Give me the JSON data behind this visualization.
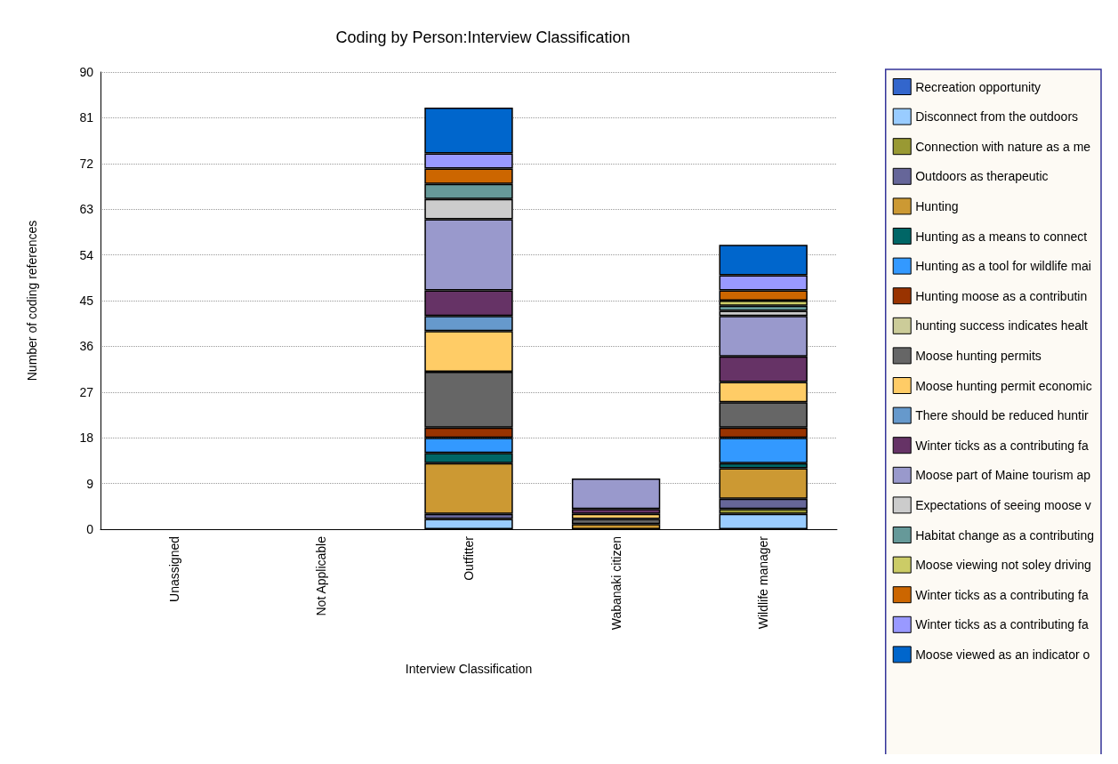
{
  "chart_data": {
    "type": "bar",
    "stacked": true,
    "title": "Coding by Person:Interview Classification",
    "xlabel": "Interview Classification",
    "ylabel": "Number of coding references",
    "categories": [
      "Unassigned",
      "Not Applicable",
      "Outfitter",
      "Wabanaki citizen",
      "Wildlife manager"
    ],
    "ylim": [
      0,
      90
    ],
    "yticks": [
      0,
      9,
      18,
      27,
      36,
      45,
      54,
      63,
      72,
      81,
      90
    ],
    "grid": "y",
    "legend": "right",
    "series": [
      {
        "name": "Recreation opportunity",
        "color": "#3366cc",
        "values": [
          null,
          null,
          null,
          null,
          null
        ]
      },
      {
        "name": "Disconnect from the outdoors",
        "color": "#99ccff",
        "values": [
          null,
          null,
          2,
          null,
          3
        ]
      },
      {
        "name": "Connection with nature as a me",
        "color": "#999933",
        "values": [
          null,
          null,
          null,
          null,
          1
        ]
      },
      {
        "name": "Outdoors as therapeutic",
        "color": "#666699",
        "values": [
          null,
          null,
          1,
          null,
          2
        ]
      },
      {
        "name": "Hunting",
        "color": "#cc9933",
        "values": [
          null,
          null,
          10,
          1,
          6
        ]
      },
      {
        "name": "Hunting as a means to connect",
        "color": "#006666",
        "values": [
          null,
          null,
          2,
          null,
          1
        ]
      },
      {
        "name": "Hunting as a tool for wildlife mai",
        "color": "#3399ff",
        "values": [
          null,
          null,
          3,
          null,
          5
        ]
      },
      {
        "name": "Hunting moose as a contributin",
        "color": "#993300",
        "values": [
          null,
          null,
          2,
          null,
          2
        ]
      },
      {
        "name": "hunting success indicates healt",
        "color": "#cccc99",
        "values": [
          null,
          null,
          null,
          null,
          null
        ]
      },
      {
        "name": "Moose hunting permits",
        "color": "#666666",
        "values": [
          null,
          null,
          11,
          1,
          5
        ]
      },
      {
        "name": "Moose hunting permit economic",
        "color": "#ffcc66",
        "values": [
          null,
          null,
          8,
          1,
          4
        ]
      },
      {
        "name": "There should be reduced huntir",
        "color": "#6699cc",
        "values": [
          null,
          null,
          3,
          null,
          null
        ]
      },
      {
        "name": "Winter ticks as a contributing fa",
        "color": "#663366",
        "values": [
          null,
          null,
          5,
          1,
          5
        ]
      },
      {
        "name": "Moose part of Maine tourism ap",
        "color": "#9999cc",
        "values": [
          null,
          null,
          14,
          6,
          8
        ]
      },
      {
        "name": "Expectations of seeing moose v",
        "color": "#cccccc",
        "values": [
          null,
          null,
          4,
          null,
          1
        ]
      },
      {
        "name": "Habitat change as a contributing",
        "color": "#669999",
        "values": [
          null,
          null,
          3,
          null,
          1
        ]
      },
      {
        "name": "Moose viewing not soley driving",
        "color": "#cccc66",
        "values": [
          null,
          null,
          null,
          null,
          1
        ]
      },
      {
        "name": "Winter ticks as a contributing fa",
        "color": "#cc6600",
        "values": [
          null,
          null,
          3,
          null,
          2
        ]
      },
      {
        "name": "Winter ticks as a contributing fa",
        "color": "#9999ff",
        "values": [
          null,
          null,
          3,
          null,
          3
        ]
      },
      {
        "name": "Moose viewed as an indicator o",
        "color": "#0066cc",
        "values": [
          null,
          null,
          9,
          null,
          6
        ]
      }
    ]
  }
}
